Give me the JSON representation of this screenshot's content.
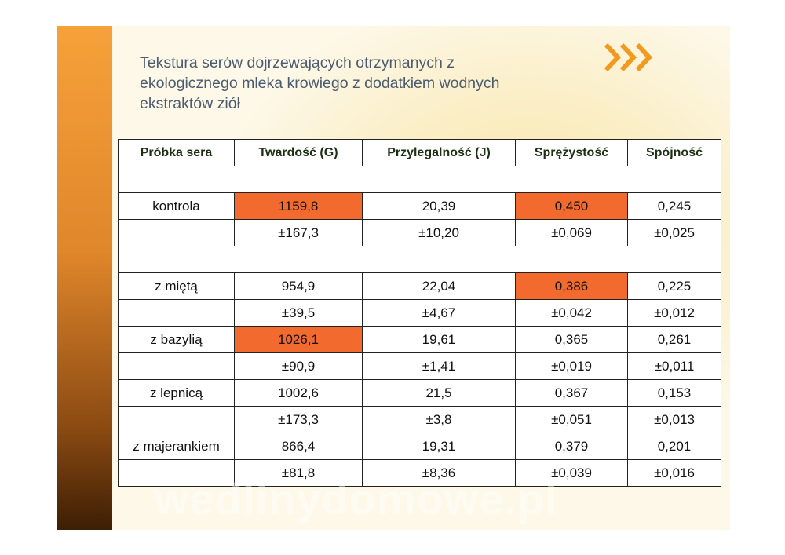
{
  "slide": {
    "title_lines": [
      "Tekstura serów dojrzewających otrzymanych z",
      "ekologicznego mleka krowiego z dodatkiem wodnych",
      "ekstraktów ziół"
    ],
    "watermark": "wedlinydomowe.pl"
  },
  "table": {
    "header": [
      "Próbka sera",
      "Twardość (G)",
      "Przylegalność (J)",
      "Sprężystość",
      "Spójność"
    ],
    "rows": [
      null,
      [
        "kontrola",
        "1159,8",
        "20,39",
        "0,450",
        "0,245"
      ],
      [
        null,
        "±167,3",
        "±10,20",
        "±0,069",
        "±0,025"
      ],
      null,
      [
        "z miętą",
        "954,9",
        "22,04",
        "0,386",
        "0,225"
      ],
      [
        null,
        "±39,5",
        "±4,67",
        "±0,042",
        "±0,012"
      ],
      [
        "z bazylią",
        "1026,1",
        "19,61",
        "0,365",
        "0,261"
      ],
      [
        null,
        "±90,9",
        "±1,41",
        "±0,019",
        "±0,011"
      ],
      [
        "z lepnicą",
        "1002,6",
        "21,5",
        "0,367",
        "0,153"
      ],
      [
        null,
        "±173,3",
        "±3,8",
        "±0,051",
        "±0,013"
      ],
      [
        "z majerankiem",
        "866,4",
        "19,31",
        "0,379",
        "0,201"
      ],
      [
        null,
        "±81,8",
        "±8,36",
        "±0,039",
        "±0,016"
      ]
    ],
    "highlight": [
      [
        1,
        1
      ],
      [
        1,
        3
      ],
      [
        4,
        3
      ],
      [
        6,
        1
      ]
    ],
    "highlight_color": "#f26a2e"
  }
}
